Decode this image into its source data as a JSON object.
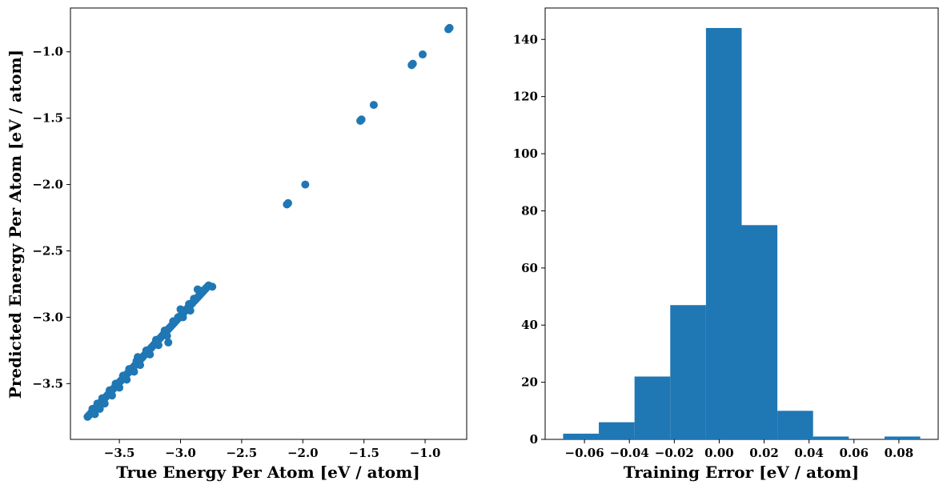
{
  "chart_data": [
    {
      "type": "scatter",
      "xlabel": "True Energy Per Atom [eV / atom]",
      "ylabel": "Predicted Energy Per Atom [eV / atom]",
      "xlim": [
        -3.9,
        -0.66
      ],
      "ylim": [
        -3.92,
        -0.67
      ],
      "xticks": [
        -3.5,
        -3.0,
        -2.5,
        -2.0,
        -1.5,
        -1.0
      ],
      "xtick_labels": [
        "−3.5",
        "−3.0",
        "−2.5",
        "−2.0",
        "−1.5",
        "−1.0"
      ],
      "yticks": [
        -3.5,
        -3.0,
        -2.5,
        -2.0,
        -1.5,
        -1.0
      ],
      "ytick_labels": [
        "−3.5",
        "−3.0",
        "−2.5",
        "−2.0",
        "−1.5",
        "−1.0"
      ],
      "color": "#1f77b4",
      "grid": false,
      "points": [
        [
          -3.76,
          -3.75
        ],
        [
          -3.75,
          -3.74
        ],
        [
          -3.74,
          -3.73
        ],
        [
          -3.73,
          -3.72
        ],
        [
          -3.72,
          -3.71
        ],
        [
          -3.71,
          -3.7
        ],
        [
          -3.7,
          -3.69
        ],
        [
          -3.69,
          -3.68
        ],
        [
          -3.68,
          -3.67
        ],
        [
          -3.67,
          -3.66
        ],
        [
          -3.66,
          -3.65
        ],
        [
          -3.65,
          -3.64
        ],
        [
          -3.64,
          -3.63
        ],
        [
          -3.63,
          -3.62
        ],
        [
          -3.62,
          -3.61
        ],
        [
          -3.61,
          -3.6
        ],
        [
          -3.6,
          -3.59
        ],
        [
          -3.59,
          -3.58
        ],
        [
          -3.58,
          -3.57
        ],
        [
          -3.57,
          -3.56
        ],
        [
          -3.56,
          -3.55
        ],
        [
          -3.55,
          -3.54
        ],
        [
          -3.54,
          -3.53
        ],
        [
          -3.53,
          -3.52
        ],
        [
          -3.52,
          -3.51
        ],
        [
          -3.51,
          -3.5
        ],
        [
          -3.5,
          -3.49
        ],
        [
          -3.49,
          -3.48
        ],
        [
          -3.48,
          -3.47
        ],
        [
          -3.47,
          -3.46
        ],
        [
          -3.46,
          -3.45
        ],
        [
          -3.45,
          -3.44
        ],
        [
          -3.44,
          -3.43
        ],
        [
          -3.43,
          -3.42
        ],
        [
          -3.42,
          -3.41
        ],
        [
          -3.41,
          -3.4
        ],
        [
          -3.4,
          -3.39
        ],
        [
          -3.39,
          -3.38
        ],
        [
          -3.38,
          -3.37
        ],
        [
          -3.37,
          -3.36
        ],
        [
          -3.36,
          -3.35
        ],
        [
          -3.35,
          -3.34
        ],
        [
          -3.34,
          -3.33
        ],
        [
          -3.33,
          -3.32
        ],
        [
          -3.32,
          -3.31
        ],
        [
          -3.31,
          -3.3
        ],
        [
          -3.3,
          -3.29
        ],
        [
          -3.29,
          -3.28
        ],
        [
          -3.28,
          -3.27
        ],
        [
          -3.27,
          -3.26
        ],
        [
          -3.26,
          -3.25
        ],
        [
          -3.25,
          -3.24
        ],
        [
          -3.24,
          -3.23
        ],
        [
          -3.23,
          -3.22
        ],
        [
          -3.22,
          -3.21
        ],
        [
          -3.21,
          -3.2
        ],
        [
          -3.2,
          -3.19
        ],
        [
          -3.19,
          -3.18
        ],
        [
          -3.18,
          -3.17
        ],
        [
          -3.17,
          -3.16
        ],
        [
          -3.16,
          -3.15
        ],
        [
          -3.15,
          -3.14
        ],
        [
          -3.14,
          -3.13
        ],
        [
          -3.13,
          -3.12
        ],
        [
          -3.12,
          -3.11
        ],
        [
          -3.11,
          -3.1
        ],
        [
          -3.1,
          -3.09
        ],
        [
          -3.09,
          -3.08
        ],
        [
          -3.08,
          -3.07
        ],
        [
          -3.07,
          -3.06
        ],
        [
          -3.06,
          -3.05
        ],
        [
          -3.05,
          -3.04
        ],
        [
          -3.04,
          -3.03
        ],
        [
          -3.03,
          -3.02
        ],
        [
          -3.02,
          -3.01
        ],
        [
          -3.01,
          -3.0
        ],
        [
          -3.0,
          -2.99
        ],
        [
          -2.99,
          -2.98
        ],
        [
          -2.98,
          -2.97
        ],
        [
          -2.97,
          -2.96
        ],
        [
          -2.96,
          -2.95
        ],
        [
          -2.95,
          -2.94
        ],
        [
          -2.94,
          -2.93
        ],
        [
          -2.93,
          -2.92
        ],
        [
          -2.92,
          -2.91
        ],
        [
          -2.91,
          -2.9
        ],
        [
          -2.9,
          -2.89
        ],
        [
          -2.89,
          -2.88
        ],
        [
          -2.88,
          -2.87
        ],
        [
          -2.87,
          -2.86
        ],
        [
          -2.86,
          -2.85
        ],
        [
          -2.85,
          -2.84
        ],
        [
          -2.84,
          -2.83
        ],
        [
          -2.83,
          -2.82
        ],
        [
          -2.82,
          -2.81
        ],
        [
          -2.81,
          -2.8
        ],
        [
          -2.8,
          -2.79
        ],
        [
          -2.79,
          -2.78
        ],
        [
          -2.78,
          -2.77
        ],
        [
          -2.77,
          -2.76
        ],
        [
          -3.72,
          -3.69
        ],
        [
          -3.7,
          -3.73
        ],
        [
          -3.68,
          -3.65
        ],
        [
          -3.66,
          -3.69
        ],
        [
          -3.64,
          -3.61
        ],
        [
          -3.62,
          -3.65
        ],
        [
          -3.58,
          -3.55
        ],
        [
          -3.56,
          -3.59
        ],
        [
          -3.53,
          -3.5
        ],
        [
          -3.5,
          -3.53
        ],
        [
          -3.47,
          -3.44
        ],
        [
          -3.44,
          -3.47
        ],
        [
          -3.42,
          -3.39
        ],
        [
          -3.38,
          -3.41
        ],
        [
          -3.36,
          -3.33
        ],
        [
          -3.35,
          -3.3
        ],
        [
          -3.33,
          -3.36
        ],
        [
          -3.28,
          -3.25
        ],
        [
          -3.25,
          -3.28
        ],
        [
          -3.2,
          -3.17
        ],
        [
          -3.18,
          -3.21
        ],
        [
          -3.13,
          -3.1
        ],
        [
          -3.11,
          -3.14
        ],
        [
          -3.1,
          -3.19
        ],
        [
          -3.06,
          -3.03
        ],
        [
          -3.02,
          -3.0
        ],
        [
          -3.0,
          -2.94
        ],
        [
          -2.98,
          -3.0
        ],
        [
          -2.93,
          -2.9
        ],
        [
          -2.89,
          -2.86
        ],
        [
          -2.86,
          -2.79
        ],
        [
          -2.82,
          -2.8
        ],
        [
          -2.74,
          -2.77
        ],
        [
          -2.92,
          -2.95
        ],
        [
          -2.13,
          -2.15
        ],
        [
          -2.12,
          -2.14
        ],
        [
          -1.98,
          -2.0
        ],
        [
          -1.53,
          -1.52
        ],
        [
          -1.52,
          -1.51
        ],
        [
          -1.42,
          -1.4
        ],
        [
          -1.11,
          -1.1
        ],
        [
          -1.1,
          -1.09
        ],
        [
          -1.02,
          -1.02
        ],
        [
          -0.81,
          -0.83
        ],
        [
          -0.8,
          -0.82
        ]
      ]
    },
    {
      "type": "bar",
      "xlabel": "Training Error [eV / atom]",
      "ylabel": "",
      "xlim": [
        -0.0775,
        0.0975
      ],
      "ylim": [
        0,
        151
      ],
      "xticks": [
        -0.06,
        -0.04,
        -0.02,
        0.0,
        0.02,
        0.04,
        0.06,
        0.08
      ],
      "xtick_labels": [
        "−0.06",
        "−0.04",
        "−0.02",
        "0.00",
        "0.02",
        "0.04",
        "0.06",
        "0.08"
      ],
      "yticks": [
        0,
        20,
        40,
        60,
        80,
        100,
        120,
        140
      ],
      "ytick_labels": [
        "0",
        "20",
        "40",
        "60",
        "80",
        "100",
        "120",
        "140"
      ],
      "color": "#1f77b4",
      "grid": false,
      "bins": [
        {
          "x0": -0.0695,
          "x1": -0.0536,
          "count": 2
        },
        {
          "x0": -0.0536,
          "x1": -0.0377,
          "count": 6
        },
        {
          "x0": -0.0377,
          "x1": -0.0218,
          "count": 22
        },
        {
          "x0": -0.0218,
          "x1": -0.0059,
          "count": 47
        },
        {
          "x0": -0.0059,
          "x1": 0.01,
          "count": 144
        },
        {
          "x0": 0.01,
          "x1": 0.0259,
          "count": 75
        },
        {
          "x0": 0.0259,
          "x1": 0.0418,
          "count": 10
        },
        {
          "x0": 0.0418,
          "x1": 0.0577,
          "count": 1
        },
        {
          "x0": 0.0577,
          "x1": 0.0736,
          "count": 0
        },
        {
          "x0": 0.0736,
          "x1": 0.0895,
          "count": 1
        }
      ]
    }
  ]
}
